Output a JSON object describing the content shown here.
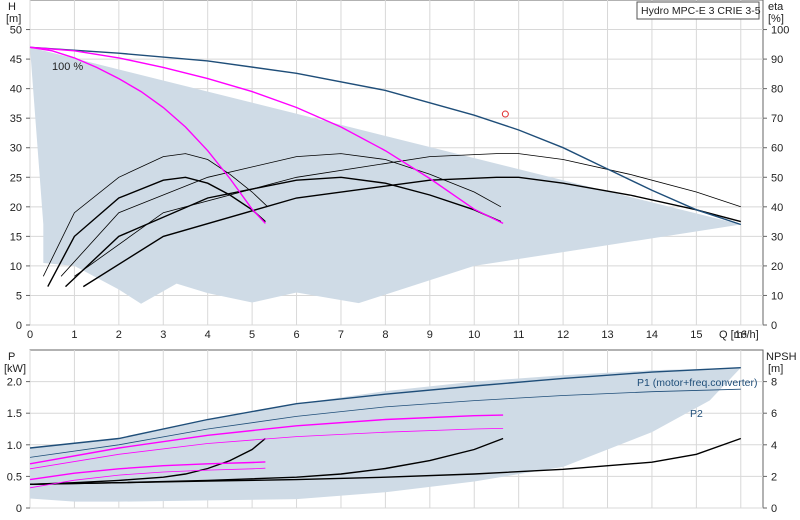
{
  "chart_data": [
    {
      "type": "line",
      "title": "Hydro MPC-E 3 CRIE 3-5",
      "xlabel": "Q [m³/h]",
      "ylabel_left": "H",
      "ylabel_left_unit": "[m]",
      "ylabel_right": "eta",
      "ylabel_right_unit": "[%]",
      "xlim": [
        0,
        16.5
      ],
      "ylim_left": [
        0,
        55
      ],
      "ylim_right": [
        0,
        110
      ],
      "xticks": [
        "0",
        "1",
        "2",
        "3",
        "4",
        "5",
        "6",
        "7",
        "8",
        "9",
        "10",
        "11",
        "12",
        "13",
        "14",
        "15",
        "16"
      ],
      "yticks_left": [
        "0",
        "5",
        "10",
        "15",
        "20",
        "25",
        "30",
        "35",
        "40",
        "45",
        "50"
      ],
      "yticks_right": [
        "0",
        "10",
        "20",
        "30",
        "40",
        "50",
        "60",
        "70",
        "80",
        "90",
        "100"
      ],
      "grid": true,
      "annotation": "100 %",
      "operating_region": [
        [
          0,
          47
        ],
        [
          0.4,
          47
        ],
        [
          2,
          46
        ],
        [
          4,
          44.7
        ],
        [
          6,
          42.6
        ],
        [
          8,
          39.7
        ],
        [
          10,
          35.5
        ],
        [
          11,
          33
        ],
        [
          12,
          30
        ],
        [
          13,
          26.4
        ],
        [
          14,
          22.8
        ],
        [
          15,
          19.5
        ],
        [
          16,
          17
        ],
        [
          13,
          20
        ],
        [
          10,
          24
        ],
        [
          8,
          28
        ],
        [
          6,
          31
        ],
        [
          4,
          32.5
        ],
        [
          3,
          33
        ],
        [
          2.3,
          33.2
        ],
        [
          1.5,
          37
        ],
        [
          1,
          40.5
        ],
        [
          0.5,
          43.5
        ],
        [
          0.2,
          45
        ]
      ],
      "allowed_region_shade": [
        [
          0,
          47
        ],
        [
          16,
          17
        ],
        [
          10,
          10
        ],
        [
          7.4,
          3.7
        ],
        [
          6,
          5.5
        ],
        [
          5,
          3.8
        ],
        [
          4,
          5.4
        ],
        [
          3.3,
          7
        ],
        [
          2.5,
          3.6
        ],
        [
          2,
          6
        ],
        [
          1,
          10
        ],
        [
          0.3,
          10.5
        ],
        [
          0.3,
          17
        ]
      ],
      "duty_point": {
        "x": 10.7,
        "y": 35.7
      },
      "head_series": [
        {
          "name": "",
          "color": "#1f4e79",
          "width": 1.4,
          "x": [
            0,
            2,
            4,
            6,
            8,
            10,
            11,
            12,
            13,
            14,
            15,
            16
          ],
          "y": [
            47,
            46,
            44.7,
            42.6,
            39.7,
            35.5,
            33,
            30,
            26.4,
            22.8,
            19.5,
            17
          ]
        },
        {
          "name": "",
          "color": "#ff00ff",
          "width": 1.4,
          "x": [
            0,
            1,
            2,
            3,
            4,
            5,
            6,
            7,
            8,
            9,
            10,
            10.65
          ],
          "y": [
            47,
            46.4,
            45.2,
            43.6,
            41.7,
            39.5,
            36.8,
            33.5,
            29.5,
            24.8,
            19.6,
            17.2
          ]
        },
        {
          "name": "",
          "color": "#ff00ff",
          "width": 1.4,
          "x": [
            0,
            0.5,
            1,
            1.5,
            2,
            2.5,
            3,
            3.5,
            4,
            4.5,
            5,
            5.3
          ],
          "y": [
            47,
            46.4,
            45.2,
            43.6,
            41.7,
            39.5,
            36.8,
            33.5,
            29.5,
            24.8,
            19.6,
            17.2
          ]
        }
      ],
      "eta_series": [
        {
          "name": "",
          "color": "#000000",
          "width": 0.8,
          "x": [
            0.3,
            1,
            2,
            3,
            3.5,
            4,
            4.5,
            5,
            5.35
          ],
          "y": [
            16.5,
            38,
            50,
            57,
            58,
            56,
            51,
            45,
            40
          ]
        },
        {
          "name": "",
          "color": "#000000",
          "width": 1.4,
          "x": [
            0.4,
            1,
            2,
            3,
            3.5,
            4,
            4.5,
            5,
            5.3
          ],
          "y": [
            13,
            30,
            43,
            49,
            50,
            48,
            44,
            39,
            35
          ]
        },
        {
          "name": "",
          "color": "#000000",
          "width": 0.8,
          "x": [
            0.7,
            2,
            4,
            6,
            7,
            8,
            9,
            10,
            10.6
          ],
          "y": [
            16.5,
            38,
            50,
            57,
            58,
            56,
            51,
            45,
            40
          ]
        },
        {
          "name": "",
          "color": "#000000",
          "width": 1.4,
          "x": [
            0.8,
            2,
            4,
            6,
            7,
            8,
            9,
            10,
            10.6
          ],
          "y": [
            13,
            30,
            43,
            49,
            50,
            48,
            44,
            39,
            35
          ]
        },
        {
          "name": "",
          "color": "#000000",
          "width": 0.8,
          "x": [
            1.0,
            3,
            6,
            9,
            10.5,
            11,
            12,
            13.5,
            15,
            16
          ],
          "y": [
            16.5,
            38,
            50,
            57,
            58,
            58,
            56,
            51,
            45,
            40
          ]
        },
        {
          "name": "",
          "color": "#000000",
          "width": 1.4,
          "x": [
            1.2,
            3,
            6,
            9,
            10.5,
            11,
            12,
            13.5,
            15,
            16
          ],
          "y": [
            13,
            30,
            43,
            49,
            50,
            50,
            48,
            44,
            39,
            35
          ]
        }
      ]
    },
    {
      "type": "line",
      "xlabel": "",
      "ylabel_left": "P",
      "ylabel_left_unit": "[kW]",
      "ylabel_right": "NPSH",
      "ylabel_right_unit": "[m]",
      "xlim": [
        0,
        16.5
      ],
      "ylim_left": [
        0,
        2.5
      ],
      "ylim_right": [
        0,
        10
      ],
      "yticks_left": [
        "0",
        "0.5",
        "1.0",
        "1.5",
        "2.0"
      ],
      "yticks_right": [
        "0",
        "2",
        "4",
        "6",
        "8"
      ],
      "grid": true,
      "labels": {
        "p1": "P1 (motor+freq.converter)",
        "p2": "P2"
      },
      "region": [
        [
          0,
          0.95
        ],
        [
          2,
          1.1
        ],
        [
          4,
          1.4
        ],
        [
          6,
          1.65
        ],
        [
          8,
          1.85
        ],
        [
          10,
          2.0
        ],
        [
          12,
          2.1
        ],
        [
          14,
          2.18
        ],
        [
          16,
          2.22
        ],
        [
          15.3,
          1.7
        ],
        [
          14,
          1.2
        ],
        [
          12,
          0.65
        ],
        [
          10,
          0.42
        ],
        [
          8,
          0.25
        ],
        [
          6,
          0.14
        ],
        [
          4,
          0.12
        ],
        [
          2,
          0.1
        ],
        [
          1,
          0.1
        ],
        [
          0,
          0.15
        ]
      ],
      "power_series": [
        {
          "name": "P1 (motor+freq.converter)",
          "color": "#1f4e79",
          "width": 1.4,
          "x": [
            0,
            2,
            4,
            6,
            8,
            10,
            12,
            14,
            16
          ],
          "y": [
            0.95,
            1.1,
            1.4,
            1.65,
            1.8,
            1.93,
            2.05,
            2.15,
            2.22
          ]
        },
        {
          "name": "P2",
          "color": "#1f4e79",
          "width": 0.8,
          "x": [
            0,
            2,
            4,
            6,
            8,
            10,
            12,
            14,
            16
          ],
          "y": [
            0.8,
            1.0,
            1.25,
            1.45,
            1.6,
            1.7,
            1.78,
            1.84,
            1.88
          ]
        },
        {
          "name": "",
          "color": "#ff00ff",
          "width": 1.4,
          "x": [
            0,
            2,
            4,
            6,
            8,
            10,
            10.65
          ],
          "y": [
            0.7,
            0.95,
            1.15,
            1.3,
            1.4,
            1.46,
            1.47
          ]
        },
        {
          "name": "",
          "color": "#ff00ff",
          "width": 0.8,
          "x": [
            0,
            2,
            4,
            6,
            8,
            10,
            10.65
          ],
          "y": [
            0.62,
            0.85,
            1.02,
            1.13,
            1.2,
            1.25,
            1.26
          ]
        },
        {
          "name": "",
          "color": "#ff00ff",
          "width": 1.4,
          "x": [
            0,
            1,
            2,
            3,
            4,
            5,
            5.3
          ],
          "y": [
            0.45,
            0.55,
            0.62,
            0.67,
            0.7,
            0.72,
            0.73
          ]
        },
        {
          "name": "",
          "color": "#ff00ff",
          "width": 0.8,
          "x": [
            0,
            1,
            2,
            3,
            4,
            5,
            5.3
          ],
          "y": [
            0.32,
            0.44,
            0.52,
            0.57,
            0.6,
            0.62,
            0.63
          ]
        }
      ],
      "npsh_series": [
        {
          "name": "",
          "color": "#000000",
          "width": 1.4,
          "x": [
            0,
            2,
            4,
            6,
            8,
            10,
            12,
            14,
            15,
            16
          ],
          "y": [
            1.5,
            1.6,
            1.7,
            1.8,
            1.95,
            2.15,
            2.45,
            2.9,
            3.4,
            4.4
          ]
        },
        {
          "name": "",
          "color": "#000000",
          "width": 1.4,
          "x": [
            0,
            2,
            4,
            6,
            7,
            8,
            9,
            10,
            10.65
          ],
          "y": [
            1.5,
            1.6,
            1.75,
            1.95,
            2.15,
            2.5,
            3.0,
            3.7,
            4.4
          ]
        },
        {
          "name": "",
          "color": "#000000",
          "width": 1.4,
          "x": [
            0,
            1,
            2,
            3,
            3.5,
            4,
            4.5,
            5,
            5.3
          ],
          "y": [
            1.5,
            1.6,
            1.75,
            1.95,
            2.15,
            2.5,
            3.0,
            3.7,
            4.4
          ]
        }
      ]
    }
  ]
}
